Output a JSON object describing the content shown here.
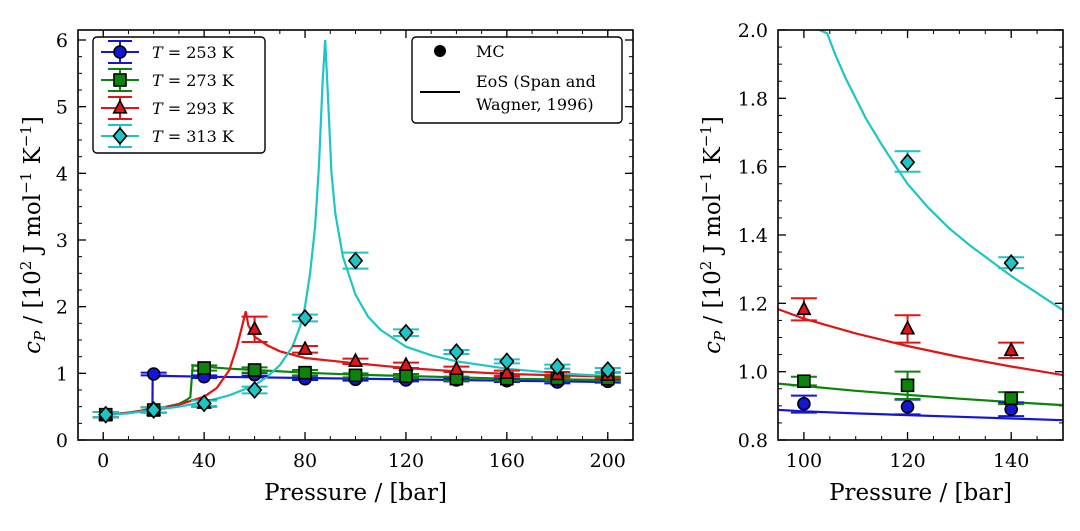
{
  "chart_data": [
    {
      "type": "line",
      "title": "",
      "xlabel": "Pressure / [bar]",
      "ylabel": "c_P / [10^2 J mol^-1 K^-1]",
      "ylabel_parts": {
        "c": "c",
        "p": "P",
        "a": " / [10",
        "sup2": "2",
        "b": " J mol",
        "supm1": "−1",
        "c2": " K",
        "supm1b": "−1",
        "d": "]"
      },
      "xlim": [
        -10,
        210
      ],
      "ylim": [
        0,
        6.15
      ],
      "xticks": [
        0,
        40,
        80,
        120,
        160,
        200
      ],
      "yticks": [
        0,
        1,
        2,
        3,
        4,
        5,
        6
      ],
      "legend_series_position": "upper-left",
      "legend_method_position": "upper-right",
      "method_legend": {
        "mc": "MC",
        "eos_line1": "EoS (Span and",
        "eos_line2": "Wagner, 1996)"
      },
      "series": [
        {
          "name": "T = 253 K",
          "T": "253",
          "color": "#1515d6",
          "marker": "circle",
          "mc_x": [
            1,
            20,
            40,
            60,
            80,
            100,
            120,
            140,
            160,
            180,
            200
          ],
          "mc_y": [
            0.38,
            0.99,
            0.95,
            0.98,
            0.92,
            0.91,
            0.9,
            0.9,
            0.89,
            0.87,
            0.88
          ],
          "mc_err": [
            0.04,
            0.02,
            0.02,
            0.02,
            0.02,
            0.02,
            0.02,
            0.02,
            0.02,
            0.02,
            0.02
          ],
          "eos_x": [
            0,
            5,
            10,
            15,
            18,
            19.5,
            19.6,
            25,
            40,
            60,
            80,
            100,
            120,
            140,
            160,
            180,
            200
          ],
          "eos_y": [
            0.37,
            0.39,
            0.41,
            0.44,
            0.46,
            0.47,
            0.96,
            0.96,
            0.95,
            0.94,
            0.93,
            0.92,
            0.91,
            0.9,
            0.89,
            0.88,
            0.87
          ]
        },
        {
          "name": "T = 273 K",
          "T": "273",
          "color": "#0a850a",
          "marker": "square",
          "mc_x": [
            1,
            20,
            40,
            60,
            80,
            100,
            120,
            140,
            160,
            180,
            200
          ],
          "mc_y": [
            0.38,
            0.45,
            1.08,
            1.05,
            1.01,
            0.97,
            0.96,
            0.92,
            0.92,
            0.92,
            0.92
          ],
          "mc_err": [
            0.04,
            0.04,
            0.04,
            0.04,
            0.04,
            0.03,
            0.03,
            0.03,
            0.03,
            0.03,
            0.03
          ],
          "eos_x": [
            0,
            10,
            20,
            25,
            30,
            33,
            34.5,
            35.5,
            40,
            50,
            60,
            80,
            100,
            120,
            140,
            160,
            180,
            200
          ],
          "eos_y": [
            0.37,
            0.41,
            0.46,
            0.5,
            0.54,
            0.6,
            0.64,
            1.12,
            1.1,
            1.07,
            1.05,
            1.01,
            0.98,
            0.96,
            0.94,
            0.92,
            0.91,
            0.9
          ]
        },
        {
          "name": "T = 293 K",
          "T": "293",
          "color": "#e01515",
          "marker": "triangle",
          "mc_x": [
            1,
            20,
            40,
            60,
            80,
            100,
            120,
            140,
            160,
            180,
            200
          ],
          "mc_y": [
            0.38,
            0.45,
            0.55,
            1.66,
            1.36,
            1.18,
            1.12,
            1.06,
            1.0,
            0.98,
            0.97
          ],
          "mc_err": [
            0.04,
            0.04,
            0.05,
            0.19,
            0.05,
            0.04,
            0.04,
            0.04,
            0.04,
            0.04,
            0.04
          ],
          "eos_x": [
            0,
            10,
            20,
            30,
            40,
            45,
            50,
            53,
            55,
            56.5,
            57.5,
            60,
            65,
            70,
            80,
            100,
            120,
            140,
            160,
            180,
            200
          ],
          "eos_y": [
            0.37,
            0.41,
            0.46,
            0.53,
            0.65,
            0.78,
            1.05,
            1.4,
            1.7,
            1.93,
            1.72,
            1.55,
            1.42,
            1.33,
            1.23,
            1.15,
            1.08,
            1.03,
            0.99,
            0.97,
            0.95
          ]
        },
        {
          "name": "T = 313 K",
          "T": "313",
          "color": "#1fc4c4",
          "marker": "diamond",
          "mc_x": [
            1,
            20,
            40,
            60,
            80,
            100,
            120,
            140,
            160,
            180,
            200
          ],
          "mc_y": [
            0.38,
            0.45,
            0.55,
            0.75,
            1.83,
            2.69,
            1.61,
            1.32,
            1.18,
            1.1,
            1.05
          ],
          "mc_err": [
            0.04,
            0.04,
            0.04,
            0.05,
            0.05,
            0.12,
            0.05,
            0.03,
            0.03,
            0.03,
            0.03
          ],
          "eos_x": [
            0,
            10,
            20,
            30,
            40,
            50,
            60,
            65,
            70,
            75,
            78,
            80,
            82,
            84,
            85.5,
            87,
            88,
            89,
            90.5,
            92,
            95,
            100,
            105,
            110,
            120,
            130,
            140,
            160,
            180,
            200
          ],
          "eos_y": [
            0.37,
            0.4,
            0.45,
            0.5,
            0.57,
            0.67,
            0.82,
            0.95,
            1.12,
            1.4,
            1.7,
            2.0,
            2.5,
            3.2,
            4.1,
            5.4,
            6.0,
            5.2,
            4.0,
            3.4,
            2.75,
            2.18,
            1.85,
            1.65,
            1.4,
            1.27,
            1.18,
            1.07,
            1.0,
            0.96
          ]
        }
      ]
    },
    {
      "type": "line",
      "title": "",
      "xlabel": "Pressure / [bar]",
      "ylabel": "c_P / [10^2 J mol^-1 K^-1]",
      "xlim": [
        95,
        150
      ],
      "ylim": [
        0.8,
        2.0
      ],
      "xticks": [
        100,
        120,
        140
      ],
      "yticks": [
        0.8,
        1.0,
        1.2,
        1.4,
        1.6,
        1.8,
        2.0
      ],
      "ytick_labels": [
        "0.8",
        "1.0",
        "1.2",
        "1.4",
        "1.6",
        "1.8",
        "2.0"
      ],
      "series": [
        {
          "name": "T = 253 K",
          "color": "#1515d6",
          "marker": "circle",
          "mc_x": [
            100,
            120,
            140
          ],
          "mc_y": [
            0.906,
            0.897,
            0.89
          ],
          "mc_lo": [
            0.88,
            0.875,
            0.87
          ],
          "mc_hi": [
            0.93,
            0.918,
            0.91
          ],
          "eos_x": [
            95,
            100,
            110,
            120,
            130,
            140,
            150
          ],
          "eos_y": [
            0.888,
            0.884,
            0.878,
            0.873,
            0.868,
            0.863,
            0.858
          ]
        },
        {
          "name": "T = 273 K",
          "color": "#0a850a",
          "marker": "square",
          "mc_x": [
            100,
            120,
            140
          ],
          "mc_y": [
            0.972,
            0.96,
            0.922
          ],
          "mc_lo": [
            0.96,
            0.92,
            0.905
          ],
          "mc_hi": [
            0.985,
            1.0,
            0.94
          ],
          "eos_x": [
            95,
            100,
            110,
            120,
            130,
            140,
            150
          ],
          "eos_y": [
            0.965,
            0.958,
            0.944,
            0.932,
            0.921,
            0.911,
            0.902
          ]
        },
        {
          "name": "T = 293 K",
          "color": "#e01515",
          "marker": "triangle",
          "mc_x": [
            100,
            120,
            140
          ],
          "mc_y": [
            1.182,
            1.125,
            1.062
          ],
          "mc_lo": [
            1.15,
            1.085,
            1.04
          ],
          "mc_hi": [
            1.215,
            1.165,
            1.085
          ],
          "eos_x": [
            95,
            100,
            110,
            120,
            130,
            140,
            150
          ],
          "eos_y": [
            1.183,
            1.155,
            1.112,
            1.075,
            1.043,
            1.015,
            0.99
          ]
        },
        {
          "name": "T = 313 K",
          "color": "#1fc4c4",
          "marker": "diamond",
          "mc_x": [
            100,
            120,
            140
          ],
          "mc_y": [
            null,
            1.613,
            1.318
          ],
          "mc_lo": [
            null,
            1.585,
            1.303
          ],
          "mc_hi": [
            null,
            1.645,
            1.335
          ],
          "eos_x": [
            103,
            104.5,
            106,
            108,
            110,
            112,
            115,
            118,
            120,
            124,
            128,
            132,
            136,
            140,
            145,
            150
          ],
          "eos_y": [
            2.0,
            1.99,
            1.93,
            1.86,
            1.8,
            1.74,
            1.665,
            1.595,
            1.55,
            1.48,
            1.42,
            1.37,
            1.325,
            1.28,
            1.23,
            1.18
          ]
        }
      ]
    }
  ]
}
